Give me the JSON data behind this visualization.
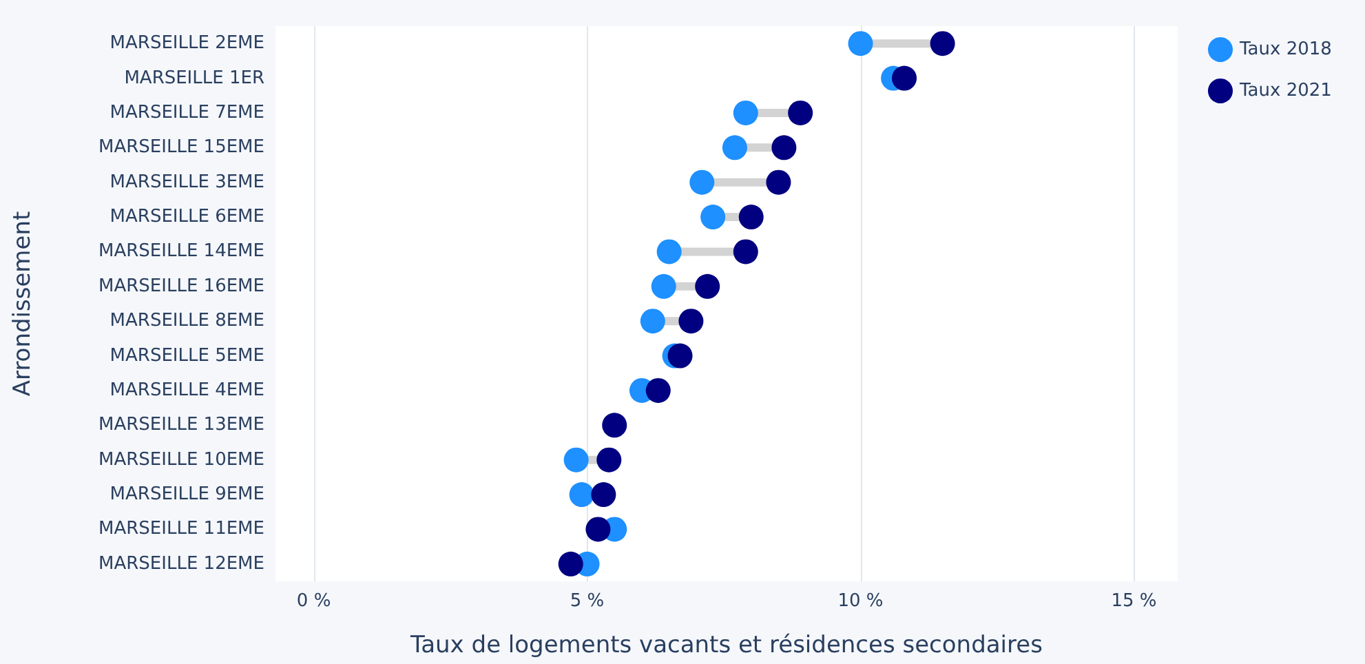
{
  "chart_data": {
    "type": "scatter",
    "orientation": "horizontal",
    "xlabel": "Taux de logements vacants et résidences secondaires",
    "ylabel": "Arrondissement",
    "categories": [
      "MARSEILLE 2EME",
      "MARSEILLE 1ER",
      "MARSEILLE 7EME",
      "MARSEILLE 15EME",
      "MARSEILLE 3EME",
      "MARSEILLE 6EME",
      "MARSEILLE 14EME",
      "MARSEILLE 16EME",
      "MARSEILLE 8EME",
      "MARSEILLE 5EME",
      "MARSEILLE 4EME",
      "MARSEILLE 13EME",
      "MARSEILLE 10EME",
      "MARSEILLE 9EME",
      "MARSEILLE 11EME",
      "MARSEILLE 12EME"
    ],
    "series": [
      {
        "name": "Taux 2018",
        "color": "#1e90ff",
        "values": [
          10.0,
          10.6,
          7.9,
          7.7,
          7.1,
          7.3,
          6.5,
          6.4,
          6.2,
          6.6,
          6.0,
          null,
          4.8,
          4.9,
          5.5,
          5.0
        ]
      },
      {
        "name": "Taux 2021",
        "color": "#000080",
        "values": [
          11.5,
          10.8,
          8.9,
          8.6,
          8.5,
          8.0,
          7.9,
          7.2,
          6.9,
          6.7,
          6.3,
          5.5,
          5.4,
          5.3,
          5.2,
          4.7
        ]
      }
    ],
    "xlim": [
      -0.7,
      15.8
    ],
    "xticks": [
      {
        "value": 0,
        "label": "0 %"
      },
      {
        "value": 5,
        "label": "5 %"
      },
      {
        "value": 10,
        "label": "10 %"
      },
      {
        "value": 15,
        "label": "15 %"
      }
    ],
    "grid": "x",
    "legend": "top right",
    "marker": "circle"
  }
}
